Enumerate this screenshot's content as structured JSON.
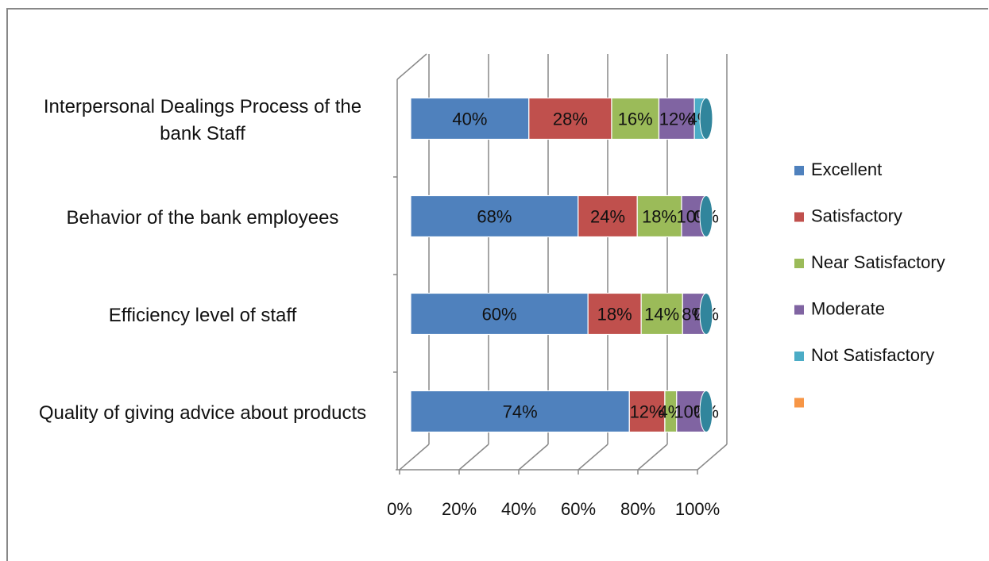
{
  "chart_data": {
    "type": "bar",
    "orientation": "horizontal",
    "stacking": "percent",
    "three_d": true,
    "categories": [
      "Interpersonal Dealings Process of the bank Staff",
      "Behavior of the bank employees",
      "Efficiency level of staff",
      "Quality of giving advice about products"
    ],
    "series": [
      {
        "name": "Excellent",
        "color": "#4f81bd",
        "values": [
          40,
          68,
          60,
          74
        ],
        "value_labels": [
          "40%",
          "68%",
          "60%",
          "74%"
        ]
      },
      {
        "name": "Satisfactory",
        "color": "#c0504d",
        "values": [
          28,
          24,
          18,
          12
        ],
        "value_labels": [
          "28%",
          "24%",
          "18%",
          "12%"
        ]
      },
      {
        "name": "Near Satisfactory",
        "color": "#9bbb59",
        "values": [
          16,
          18,
          14,
          4
        ],
        "value_labels": [
          "16%",
          "18%",
          "14%",
          "4%"
        ]
      },
      {
        "name": "Moderate",
        "color": "#8064a2",
        "values": [
          12,
          10,
          8,
          10
        ],
        "value_labels": [
          "12%",
          "10%",
          "8%",
          "10%"
        ]
      },
      {
        "name": "Not Satisfactory",
        "color": "#4bacc6",
        "values": [
          4,
          0,
          0,
          0
        ],
        "value_labels": [
          "4%",
          "0%",
          "0%",
          "0%"
        ]
      },
      {
        "name": null,
        "color": "#f79646",
        "values": [
          null,
          null,
          null,
          null
        ]
      }
    ],
    "xlim": [
      0,
      100
    ],
    "xticks": [
      {
        "value": 0,
        "label": "0%"
      },
      {
        "value": 20,
        "label": "20%"
      },
      {
        "value": 40,
        "label": "40%"
      },
      {
        "value": 60,
        "label": "60%"
      },
      {
        "value": 80,
        "label": "80%"
      },
      {
        "value": 100,
        "label": "100%"
      }
    ],
    "grid": true,
    "legend": "right"
  }
}
